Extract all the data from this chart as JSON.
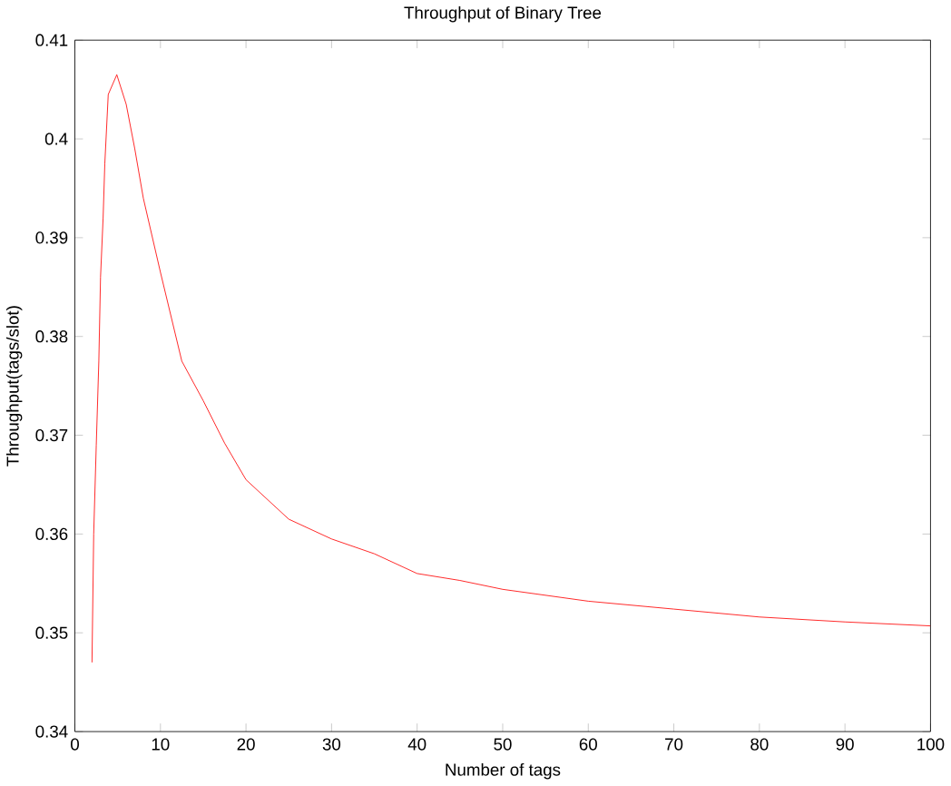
{
  "chart_data": {
    "type": "line",
    "title": "Throughput of Binary Tree",
    "xlabel": "Number of tags",
    "ylabel": "Throughput(tags/slot)",
    "x": [
      2,
      2.2,
      2.5,
      2.8,
      3,
      3.3,
      3.5,
      3.9,
      4.9,
      6,
      7,
      8,
      10,
      12.5,
      15,
      17.5,
      20,
      25,
      30,
      35,
      40,
      45,
      50,
      60,
      70,
      80,
      90,
      100
    ],
    "series": [
      {
        "color": "#ff0000",
        "values": [
          0.347,
          0.36,
          0.369,
          0.3775,
          0.386,
          0.392,
          0.3975,
          0.4045,
          0.4065,
          0.4035,
          0.399,
          0.394,
          0.3865,
          0.3775,
          0.3735,
          0.3692,
          0.3655,
          0.3615,
          0.3595,
          0.358,
          0.356,
          0.3553,
          0.3544,
          0.3532,
          0.3524,
          0.3516,
          0.3511,
          0.3507
        ]
      }
    ],
    "xlim": [
      0,
      100
    ],
    "ylim": [
      0.34,
      0.41
    ],
    "xticks": [
      0,
      10,
      20,
      30,
      40,
      50,
      60,
      70,
      80,
      90,
      100
    ],
    "yticks": [
      0.34,
      0.35,
      0.36,
      0.37,
      0.38,
      0.39,
      0.4,
      0.41
    ],
    "grid": false,
    "marker": "none",
    "line_style": "solid"
  }
}
